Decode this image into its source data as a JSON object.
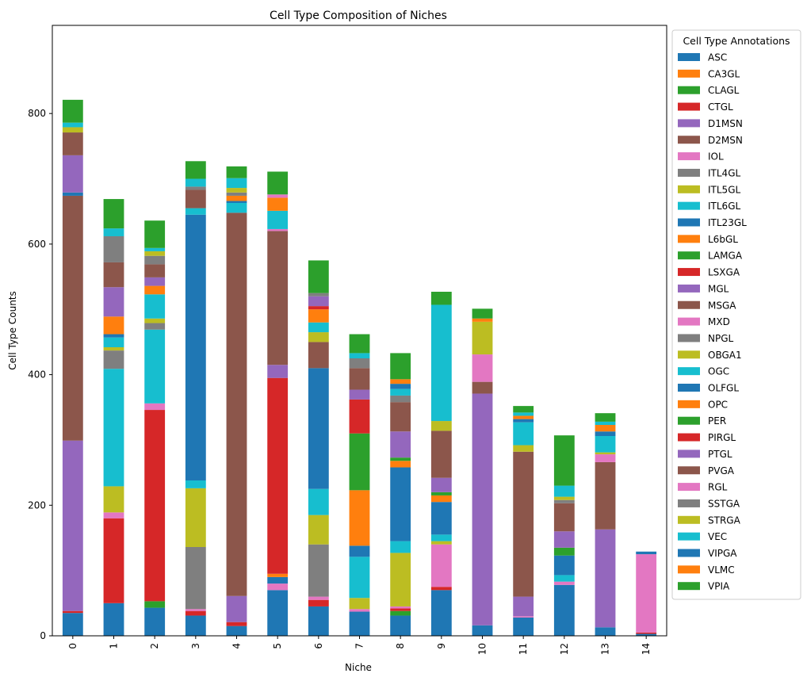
{
  "chart_data": {
    "type": "bar",
    "stacked": true,
    "title": "Cell Type Composition of Niches",
    "xlabel": "Niche",
    "ylabel": "Cell Type Counts",
    "ylim": [
      0,
      935
    ],
    "yticks": [
      0,
      200,
      400,
      600,
      800
    ],
    "grid": false,
    "legend": {
      "title": "Cell Type Annotations",
      "placement": "outside-right"
    },
    "categories": [
      "0",
      "1",
      "2",
      "3",
      "4",
      "5",
      "6",
      "7",
      "8",
      "9",
      "10",
      "11",
      "12",
      "13",
      "14"
    ],
    "series": [
      {
        "name": "ASC",
        "color": "#1f77b4",
        "values": [
          35,
          50,
          43,
          31,
          15,
          70,
          45,
          37,
          31,
          70,
          16,
          28,
          78,
          13,
          3
        ]
      },
      {
        "name": "CA3GL",
        "color": "#ff7f0e",
        "values": [
          0,
          0,
          0,
          0,
          0,
          0,
          0,
          0,
          0,
          0,
          0,
          0,
          0,
          0,
          0
        ]
      },
      {
        "name": "CLAGL",
        "color": "#2ca02c",
        "values": [
          0,
          0,
          10,
          0,
          0,
          0,
          0,
          0,
          7,
          0,
          0,
          0,
          0,
          0,
          0
        ]
      },
      {
        "name": "CTGL",
        "color": "#d62728",
        "values": [
          3,
          130,
          293,
          7,
          6,
          0,
          10,
          0,
          4,
          5,
          0,
          0,
          0,
          0,
          2
        ]
      },
      {
        "name": "D1MSN",
        "color": "#9467bd",
        "values": [
          261,
          0,
          0,
          0,
          40,
          0,
          0,
          0,
          0,
          0,
          0,
          0,
          0,
          0,
          0
        ]
      },
      {
        "name": "D2MSN",
        "color": "#8c564b",
        "values": [
          0,
          0,
          0,
          0,
          0,
          0,
          0,
          0,
          0,
          0,
          0,
          0,
          0,
          0,
          0
        ]
      },
      {
        "name": "IOL",
        "color": "#e377c2",
        "values": [
          0,
          9,
          10,
          3,
          0,
          10,
          5,
          4,
          3,
          65,
          0,
          2,
          5,
          0,
          120
        ]
      },
      {
        "name": "ITL4GL",
        "color": "#7f7f7f",
        "values": [
          0,
          0,
          0,
          95,
          0,
          0,
          80,
          0,
          0,
          0,
          0,
          0,
          0,
          0,
          0
        ]
      },
      {
        "name": "ITL5GL",
        "color": "#bcbd22",
        "values": [
          0,
          40,
          0,
          90,
          0,
          0,
          45,
          17,
          82,
          5,
          0,
          0,
          0,
          0,
          0
        ]
      },
      {
        "name": "ITL6GL",
        "color": "#17becf",
        "values": [
          0,
          180,
          113,
          12,
          0,
          0,
          40,
          63,
          18,
          10,
          0,
          0,
          10,
          0,
          0
        ]
      },
      {
        "name": "ITL23GL",
        "color": "#1f77b4",
        "values": [
          0,
          0,
          0,
          407,
          0,
          10,
          185,
          17,
          113,
          50,
          0,
          0,
          30,
          0,
          0
        ]
      },
      {
        "name": "L6bGL",
        "color": "#ff7f0e",
        "values": [
          0,
          0,
          0,
          0,
          0,
          5,
          0,
          85,
          10,
          10,
          0,
          0,
          0,
          0,
          0
        ]
      },
      {
        "name": "LAMGA",
        "color": "#2ca02c",
        "values": [
          0,
          0,
          0,
          0,
          0,
          0,
          0,
          87,
          5,
          5,
          0,
          0,
          12,
          0,
          0
        ]
      },
      {
        "name": "LSXGA",
        "color": "#d62728",
        "values": [
          0,
          0,
          0,
          0,
          0,
          300,
          0,
          52,
          0,
          0,
          0,
          0,
          0,
          0,
          0
        ]
      },
      {
        "name": "MGL",
        "color": "#9467bd",
        "values": [
          0,
          0,
          0,
          0,
          0,
          20,
          0,
          15,
          40,
          22,
          355,
          30,
          25,
          150,
          0
        ]
      },
      {
        "name": "MSGA",
        "color": "#8c564b",
        "values": [
          375,
          0,
          0,
          0,
          587,
          205,
          40,
          33,
          45,
          72,
          18,
          222,
          43,
          103,
          0
        ]
      },
      {
        "name": "MXD",
        "color": "#e377c2",
        "values": [
          0,
          0,
          0,
          0,
          0,
          3,
          0,
          0,
          0,
          0,
          42,
          0,
          0,
          12,
          0
        ]
      },
      {
        "name": "NPGL",
        "color": "#7f7f7f",
        "values": [
          0,
          28,
          10,
          0,
          0,
          0,
          0,
          15,
          10,
          0,
          0,
          0,
          5,
          0,
          0
        ]
      },
      {
        "name": "OBGA1",
        "color": "#bcbd22",
        "values": [
          0,
          5,
          7,
          0,
          0,
          0,
          15,
          0,
          0,
          15,
          50,
          10,
          5,
          3,
          0
        ]
      },
      {
        "name": "OGC",
        "color": "#17becf",
        "values": [
          0,
          15,
          37,
          10,
          15,
          28,
          15,
          8,
          10,
          178,
          0,
          35,
          17,
          25,
          0
        ]
      },
      {
        "name": "OLFGL",
        "color": "#1f77b4",
        "values": [
          5,
          5,
          0,
          0,
          3,
          0,
          0,
          0,
          8,
          0,
          0,
          5,
          0,
          7,
          4
        ]
      },
      {
        "name": "OPC",
        "color": "#ff7f0e",
        "values": [
          0,
          27,
          13,
          0,
          8,
          20,
          20,
          0,
          7,
          0,
          5,
          5,
          0,
          10,
          0
        ]
      },
      {
        "name": "PER",
        "color": "#2ca02c",
        "values": [
          0,
          0,
          0,
          0,
          0,
          0,
          0,
          0,
          0,
          0,
          0,
          0,
          0,
          0,
          0
        ]
      },
      {
        "name": "PIRGL",
        "color": "#d62728",
        "values": [
          0,
          0,
          0,
          0,
          0,
          0,
          5,
          0,
          0,
          0,
          0,
          0,
          0,
          0,
          0
        ]
      },
      {
        "name": "PTGL",
        "color": "#9467bd",
        "values": [
          57,
          45,
          13,
          0,
          0,
          0,
          15,
          0,
          0,
          0,
          0,
          0,
          0,
          0,
          0
        ]
      },
      {
        "name": "PVGA",
        "color": "#8c564b",
        "values": [
          35,
          38,
          20,
          28,
          0,
          0,
          0,
          0,
          0,
          0,
          0,
          0,
          0,
          0,
          0
        ]
      },
      {
        "name": "RGL",
        "color": "#e377c2",
        "values": [
          0,
          0,
          0,
          0,
          0,
          5,
          0,
          0,
          0,
          0,
          0,
          0,
          0,
          0,
          0
        ]
      },
      {
        "name": "SSTGA",
        "color": "#7f7f7f",
        "values": [
          0,
          40,
          13,
          5,
          5,
          0,
          5,
          0,
          0,
          0,
          0,
          0,
          0,
          0,
          0
        ]
      },
      {
        "name": "STRGA",
        "color": "#bcbd22",
        "values": [
          8,
          0,
          7,
          0,
          7,
          0,
          0,
          0,
          0,
          0,
          0,
          0,
          0,
          0,
          0
        ]
      },
      {
        "name": "VEC",
        "color": "#17becf",
        "values": [
          7,
          12,
          5,
          12,
          15,
          0,
          0,
          0,
          0,
          0,
          0,
          5,
          0,
          5,
          0
        ]
      },
      {
        "name": "VIPGA",
        "color": "#1f77b4",
        "values": [
          0,
          0,
          0,
          0,
          0,
          0,
          0,
          0,
          0,
          0,
          0,
          0,
          0,
          0,
          0
        ]
      },
      {
        "name": "VLMC",
        "color": "#ff7f0e",
        "values": [
          0,
          0,
          0,
          0,
          0,
          0,
          0,
          0,
          0,
          0,
          0,
          0,
          0,
          0,
          0
        ]
      },
      {
        "name": "VPIA",
        "color": "#2ca02c",
        "values": [
          35,
          45,
          42,
          27,
          18,
          35,
          50,
          29,
          40,
          20,
          15,
          10,
          77,
          13,
          0
        ]
      }
    ]
  }
}
